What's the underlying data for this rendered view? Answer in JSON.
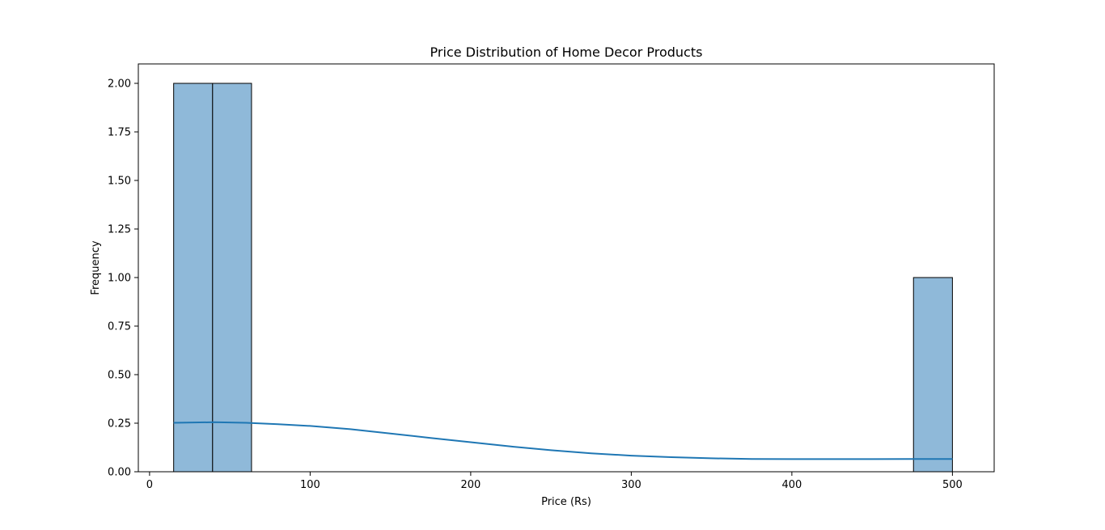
{
  "chart_data": {
    "type": "bar",
    "title": "Price Distribution of Home Decor Products",
    "xlabel": "Price (Rs)",
    "ylabel": "Frequency",
    "xlim": [
      -7,
      526
    ],
    "ylim": [
      0,
      2.1
    ],
    "x_ticks": [
      0,
      100,
      200,
      300,
      400,
      500
    ],
    "x_tick_labels": [
      "0",
      "100",
      "200",
      "300",
      "400",
      "500"
    ],
    "y_ticks": [
      0,
      0.25,
      0.5,
      0.75,
      1.0,
      1.25,
      1.5,
      1.75,
      2.0
    ],
    "y_tick_labels": [
      "0.00",
      "0.25",
      "0.50",
      "0.75",
      "1.00",
      "1.25",
      "1.50",
      "1.75",
      "2.00"
    ],
    "bins": [
      {
        "start": 15,
        "end": 39.25,
        "count": 2
      },
      {
        "start": 39.25,
        "end": 63.5,
        "count": 2
      },
      {
        "start": 475.75,
        "end": 500,
        "count": 1
      }
    ],
    "kde": {
      "x": [
        15,
        40,
        60,
        80,
        100,
        125,
        150,
        175,
        200,
        225,
        250,
        275,
        300,
        325,
        350,
        375,
        400,
        425,
        450,
        475,
        500
      ],
      "y": [
        0.252,
        0.255,
        0.252,
        0.245,
        0.236,
        0.219,
        0.197,
        0.174,
        0.152,
        0.13,
        0.111,
        0.095,
        0.083,
        0.075,
        0.069,
        0.066,
        0.065,
        0.065,
        0.065,
        0.066,
        0.066
      ]
    },
    "colors": {
      "bar_fill": "#8fb9d9",
      "bar_edge": "#000000",
      "kde_line": "#1f77b4"
    },
    "grid": false
  }
}
